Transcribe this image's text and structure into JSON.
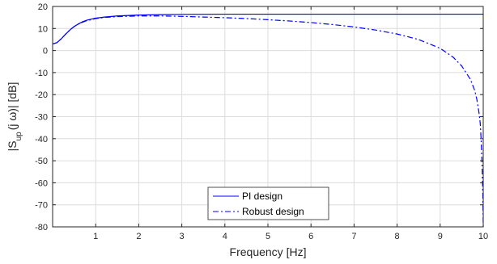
{
  "chart_data": {
    "type": "line",
    "title": "",
    "xlabel": "Frequency [Hz]",
    "ylabel": {
      "prefix": "|S",
      "subscript": "up",
      "suffix": "(j ω)| [dB]"
    },
    "xlim": [
      0,
      10
    ],
    "ylim": [
      -80,
      20
    ],
    "x_ticks": [
      1,
      2,
      3,
      4,
      5,
      6,
      7,
      8,
      9,
      10
    ],
    "x_tick_labels": [
      "1",
      "2",
      "3",
      "4",
      "5",
      "6",
      "7",
      "8",
      "9",
      "10"
    ],
    "y_ticks": [
      20,
      10,
      0,
      -10,
      -20,
      -30,
      -40,
      -50,
      -60,
      -70,
      -80
    ],
    "y_tick_labels": [
      "20",
      "10",
      "0",
      "-10",
      "-20",
      "-30",
      "-40",
      "-50",
      "-60",
      "-70",
      "-80"
    ],
    "grid": true,
    "legend_position": "bottom-center",
    "series": [
      {
        "name": "PI design",
        "color": "#0000ff",
        "line_style": "solid",
        "x": [
          0,
          0.1,
          0.2,
          0.3,
          0.4,
          0.5,
          0.6,
          0.7,
          0.8,
          1.0,
          1.2,
          1.5,
          2.0,
          2.5,
          3.0,
          4.0,
          5.0,
          6.0,
          7.0,
          8.0,
          9.0,
          10.0
        ],
        "y": [
          3.0,
          3.6,
          5.3,
          7.4,
          9.3,
          10.9,
          12.1,
          13.1,
          13.8,
          14.7,
          15.2,
          15.7,
          16.1,
          16.3,
          16.4,
          16.5,
          16.5,
          16.5,
          16.5,
          16.5,
          16.5,
          16.5
        ]
      },
      {
        "name": "Robust design",
        "color": "#0000ff",
        "line_style": "dashdot",
        "x": [
          0,
          0.1,
          0.2,
          0.3,
          0.4,
          0.5,
          0.6,
          0.7,
          0.8,
          1.0,
          1.2,
          1.5,
          2.0,
          2.5,
          3.0,
          3.5,
          4.0,
          4.5,
          5.0,
          5.5,
          6.0,
          6.5,
          7.0,
          7.5,
          8.0,
          8.5,
          9.0,
          9.3,
          9.5,
          9.7,
          9.8,
          9.85,
          9.9,
          9.93,
          9.95,
          9.97,
          9.99,
          10.0
        ],
        "y": [
          3.0,
          3.6,
          5.3,
          7.4,
          9.3,
          10.9,
          12.0,
          12.9,
          13.6,
          14.5,
          15.0,
          15.4,
          15.7,
          15.7,
          15.5,
          15.2,
          14.9,
          14.5,
          14.0,
          13.4,
          12.7,
          11.8,
          10.7,
          9.3,
          7.5,
          5.0,
          1.0,
          -3.0,
          -7.0,
          -13.0,
          -18.0,
          -22.0,
          -28.0,
          -33.0,
          -40.0,
          -50.0,
          -65.0,
          -80.0
        ]
      }
    ]
  }
}
